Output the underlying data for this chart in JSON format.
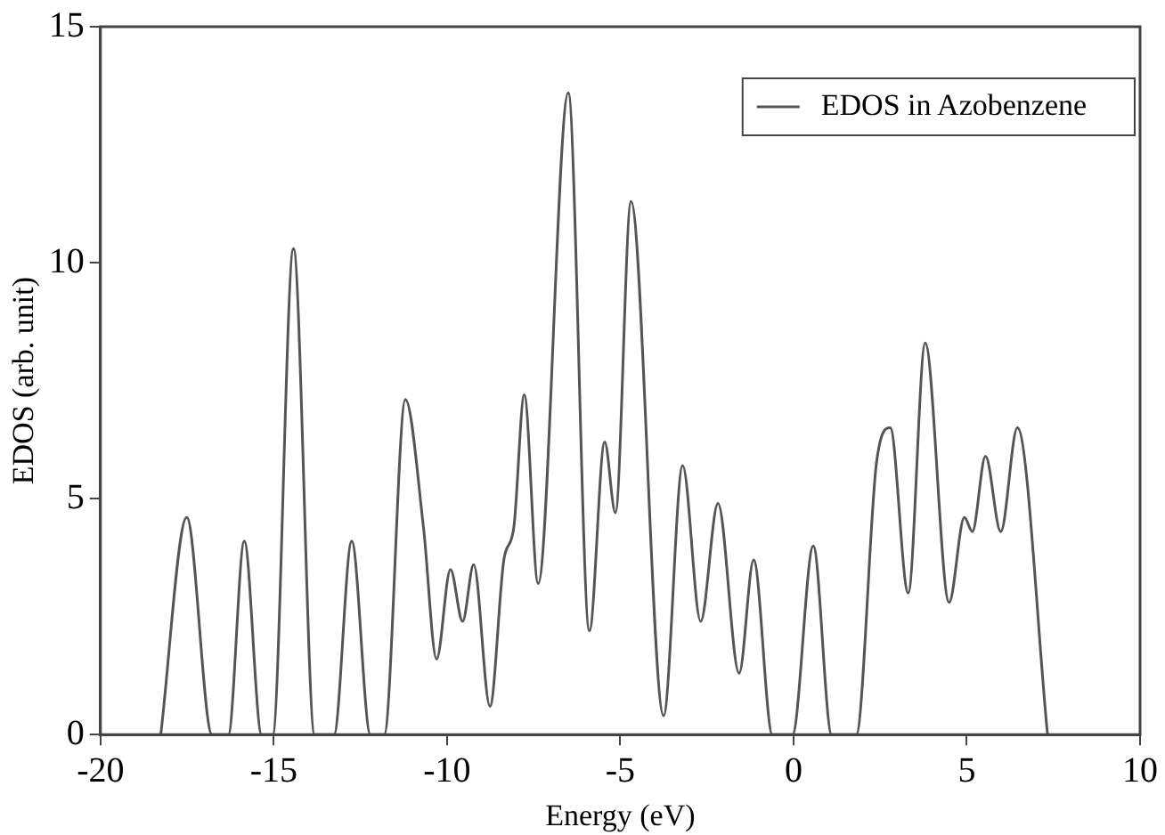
{
  "chart_data": {
    "type": "line",
    "xlabel": "Energy (eV)",
    "ylabel": "EDOS (arb. unit)",
    "xlim": [
      -20,
      10
    ],
    "xticks": [
      -20,
      -15,
      -10,
      -5,
      0,
      5,
      10
    ],
    "ylim": [
      0,
      15
    ],
    "yticks": [
      0,
      5,
      10,
      15
    ],
    "grid": false,
    "legend": "top right",
    "marker": "none",
    "line_style": "solid",
    "series": [
      {
        "name": "EDOS in Azobenzene",
        "color": "#555555",
        "x": [
          -18.26,
          -17.51,
          -16.78,
          -16.31,
          -15.85,
          -15.35,
          -15.03,
          -14.43,
          -13.82,
          -13.26,
          -12.75,
          -12.21,
          -11.81,
          -11.2,
          -10.68,
          -10.3,
          -9.9,
          -9.55,
          -9.23,
          -8.76,
          -8.36,
          -8.07,
          -7.77,
          -7.37,
          -6.5,
          -5.89,
          -5.45,
          -5.14,
          -4.69,
          -3.75,
          -3.2,
          -2.68,
          -2.18,
          -1.57,
          -1.15,
          -0.61,
          -0.03,
          0.57,
          1.1,
          1.81,
          2.4,
          2.79,
          3.31,
          3.8,
          4.49,
          4.93,
          5.16,
          5.54,
          5.98,
          6.46,
          7.33
        ],
        "values": [
          0,
          4.6,
          0,
          0,
          4.1,
          0,
          0,
          10.3,
          0,
          0,
          4.1,
          0,
          0,
          7.1,
          4.4,
          1.6,
          3.5,
          2.4,
          3.6,
          0.6,
          3.7,
          4.4,
          7.2,
          3.2,
          13.6,
          2.2,
          6.2,
          4.7,
          11.3,
          0.4,
          5.7,
          2.4,
          4.9,
          1.3,
          3.7,
          0,
          0,
          4.0,
          0,
          0,
          5.8,
          6.5,
          3.0,
          8.3,
          2.8,
          4.6,
          4.3,
          5.9,
          4.3,
          6.5,
          0
        ]
      }
    ]
  }
}
